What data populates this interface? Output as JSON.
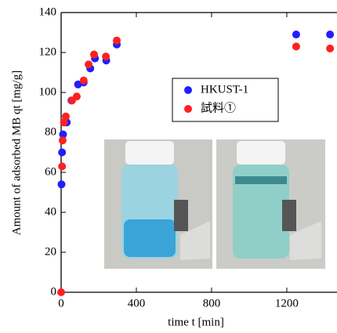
{
  "chart_data": {
    "type": "scatter",
    "xlabel": "time t [min]",
    "ylabel": "Amount of adsorbed MB qt [mg/g]",
    "xlim": [
      0,
      1467
    ],
    "xticks": [
      0,
      400,
      800,
      1200
    ],
    "ylim": [
      0,
      140
    ],
    "yticks": [
      0,
      20,
      40,
      60,
      80,
      100,
      120,
      140
    ],
    "series": [
      {
        "name": "HKUST-1",
        "color": "#1f1fff",
        "x": [
          2,
          5,
          10,
          30,
          55,
          90,
          120,
          155,
          180,
          240,
          296,
          1250,
          1430
        ],
        "values": [
          54,
          70,
          79,
          85,
          96,
          104,
          105,
          112,
          117,
          116,
          124,
          129,
          129
        ]
      },
      {
        "name": "試料①",
        "color": "#ff2020",
        "x": [
          0,
          5,
          8,
          15,
          25,
          58,
          83,
          120,
          146,
          175,
          238,
          296,
          1250,
          1430
        ],
        "values": [
          0,
          63,
          76,
          85,
          88,
          96,
          98,
          106,
          114,
          119,
          118,
          126,
          123,
          122
        ]
      }
    ]
  }
}
